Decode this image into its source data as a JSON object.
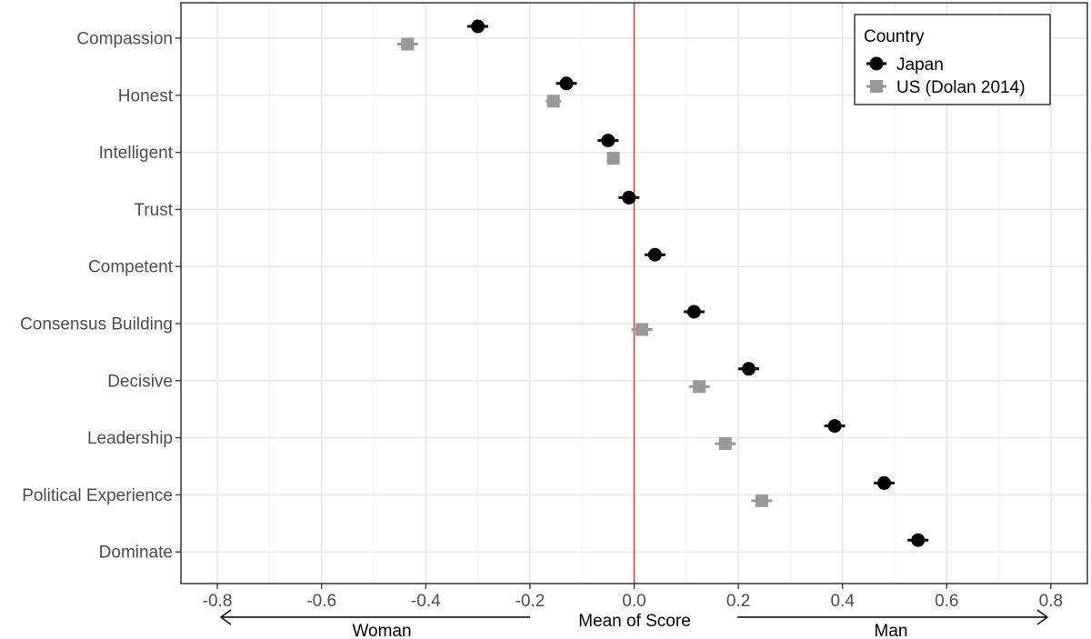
{
  "chart_data": {
    "type": "scatter",
    "xlabel": "Mean of Score",
    "xlim": [
      -0.87,
      0.87
    ],
    "xticks": [
      -0.8,
      -0.6,
      -0.4,
      -0.2,
      0.0,
      0.2,
      0.4,
      0.6,
      0.8
    ],
    "xtick_labels": [
      "-0.8",
      "-0.6",
      "-0.4",
      "-0.2",
      "0.0",
      "0.2",
      "0.4",
      "0.6",
      "0.8"
    ],
    "reference_line": {
      "x": 0.0,
      "color": "#e8402a"
    },
    "categories": [
      "Compassion",
      "Honest",
      "Intelligent",
      "Trust",
      "Competent",
      "Consensus Building",
      "Decisive",
      "Leadership",
      "Political Experience",
      "Dominate"
    ],
    "legend": {
      "title": "Country",
      "position": "top-right"
    },
    "grid": true,
    "direction_labels": {
      "left": "Woman",
      "right": "Man"
    },
    "series": [
      {
        "name": "Japan",
        "marker": "circle",
        "color": "#000000",
        "values": [
          -0.3,
          -0.13,
          -0.05,
          -0.01,
          0.04,
          0.115,
          0.22,
          0.385,
          0.48,
          0.545
        ],
        "err": [
          0.02,
          0.02,
          0.02,
          0.02,
          0.02,
          0.02,
          0.02,
          0.02,
          0.02,
          0.02
        ]
      },
      {
        "name": "US (Dolan 2014)",
        "marker": "square",
        "color": "#999999",
        "values": [
          -0.435,
          -0.155,
          -0.04,
          null,
          null,
          0.015,
          0.125,
          0.175,
          0.245,
          null
        ],
        "err": [
          0.02,
          0.015,
          0.01,
          null,
          null,
          0.02,
          0.02,
          0.02,
          0.02,
          null
        ]
      }
    ]
  }
}
